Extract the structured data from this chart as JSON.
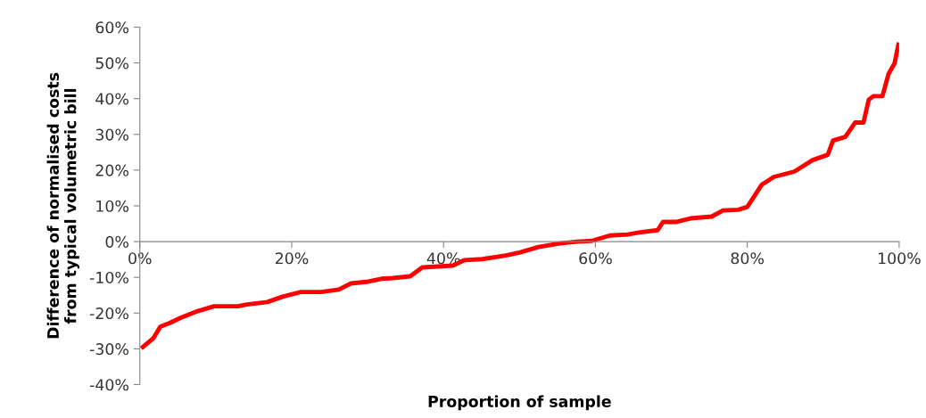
{
  "chart_data": {
    "type": "line",
    "xlabel": "Proportion of sample",
    "ylabel": "Difference of normalised costs\nfrom typical volumetric bill",
    "x": [
      0.4,
      1.8,
      2.7,
      3.9,
      5.4,
      7.4,
      9.8,
      12.9,
      14.1,
      16.8,
      18.8,
      21.2,
      23.9,
      26.2,
      27.8,
      30.1,
      31.8,
      33.3,
      35.6,
      37.2,
      41.2,
      42.7,
      45.1,
      48.2,
      50.1,
      52.5,
      55.3,
      57.6,
      59.5,
      61.9,
      64.2,
      65.9,
      68.2,
      68.9,
      70.6,
      72.5,
      75.3,
      76.8,
      78.8,
      80.0,
      81.9,
      83.5,
      86.2,
      88.6,
      90.6,
      91.3,
      92.9,
      94.2,
      95.3,
      96.0,
      96.6,
      97.8,
      98.6,
      99.4,
      99.9
    ],
    "series": [
      {
        "color": "#ff0000",
        "values": [
          -29.5,
          -27,
          -23.8,
          -22.8,
          -21.3,
          -19.6,
          -18.1,
          -18.1,
          -17.6,
          -16.9,
          -15.4,
          -14.1,
          -14.1,
          -13.4,
          -11.7,
          -11.2,
          -10.4,
          -10.2,
          -9.7,
          -7.2,
          -6.7,
          -5.2,
          -4.9,
          -3.9,
          -3.0,
          -1.5,
          -0.5,
          0,
          0.2,
          1.7,
          2.0,
          2.6,
          3.2,
          5.5,
          5.5,
          6.5,
          7.0,
          8.7,
          8.9,
          9.7,
          15.9,
          18.1,
          19.6,
          22.8,
          24.3,
          28.3,
          29.3,
          33.3,
          33.3,
          39.7,
          40.7,
          40.7,
          46.9,
          49.9,
          55.1
        ]
      }
    ],
    "xlim": [
      0,
      100
    ],
    "ylim": [
      -40,
      60
    ],
    "xticks": [
      {
        "value": 0,
        "label": "0%"
      },
      {
        "value": 20,
        "label": "20%"
      },
      {
        "value": 40,
        "label": "40%"
      },
      {
        "value": 60,
        "label": "60%"
      },
      {
        "value": 80,
        "label": "80%"
      },
      {
        "value": 100,
        "label": "100%"
      }
    ],
    "yticks": [
      {
        "value": -40,
        "label": "-40%"
      },
      {
        "value": -30,
        "label": "-30%"
      },
      {
        "value": -20,
        "label": "-20%"
      },
      {
        "value": -10,
        "label": "-10%"
      },
      {
        "value": 0,
        "label": "0%"
      },
      {
        "value": 10,
        "label": "10%"
      },
      {
        "value": 20,
        "label": "20%"
      },
      {
        "value": 30,
        "label": "30%"
      },
      {
        "value": 40,
        "label": "40%"
      },
      {
        "value": 50,
        "label": "50%"
      },
      {
        "value": 60,
        "label": "60%"
      }
    ],
    "grid": false,
    "legend": false,
    "marker": "none",
    "line_style": "solid"
  }
}
